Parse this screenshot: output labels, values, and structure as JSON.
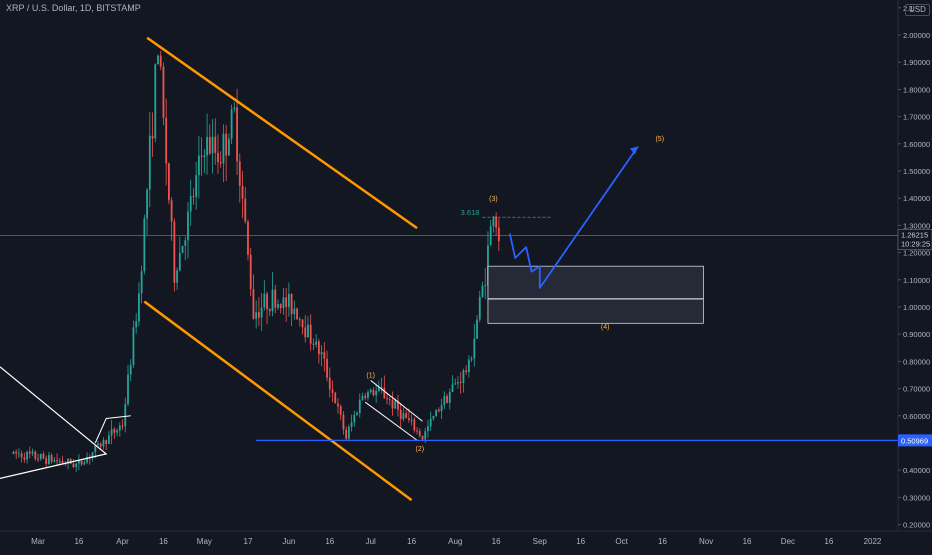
{
  "header": {
    "title": "XRP / U.S. Dollar, 1D, BITSTAMP",
    "currency": "USD"
  },
  "colors": {
    "background": "#131722",
    "up": "#26a69a",
    "down": "#ef5350",
    "channel": "#ff9800",
    "projection": "#2962ff",
    "support": "#2962ff",
    "triangle": "#ffffff",
    "wave_label": "#ffb74d",
    "fib": "#26a69a",
    "zone_fill": "#2a2e39",
    "price_line": "#787b86"
  },
  "chart_data": {
    "type": "candlestick",
    "x_tick_labels": [
      "Mar",
      "16",
      "Apr",
      "16",
      "May",
      "17",
      "Jun",
      "16",
      "Jul",
      "16",
      "Aug",
      "16",
      "Sep",
      "16",
      "Oct",
      "16",
      "Nov",
      "16",
      "Dec",
      "16",
      "2022"
    ],
    "y_tick_labels": [
      "2.1",
      "2.00000",
      "1.90000",
      "1.80000",
      "1.70000",
      "1.60000",
      "1.50000",
      "1.40000",
      "1.30000",
      "1.20000",
      "1.10000",
      "1.00000",
      "0.90000",
      "0.80000",
      "0.70000",
      "0.60000",
      "0.50000",
      "0.40000",
      "0.30000",
      "0.20000"
    ],
    "ylim": [
      0.17,
      2.1
    ],
    "last_price": "1.26215",
    "countdown": "10:29:25",
    "support_level": "0.50969",
    "fib_label": "3.618",
    "wave_labels": [
      "(1)",
      "(2)",
      "(3)",
      "(4)",
      "(5)"
    ],
    "key_points": [
      {
        "date": "2021-02-22",
        "price": 0.46
      },
      {
        "date": "2021-03-16",
        "price": 0.42
      },
      {
        "date": "2021-04-01",
        "price": 0.57
      },
      {
        "date": "2021-04-07",
        "price": 1.05
      },
      {
        "date": "2021-04-14",
        "price": 1.96
      },
      {
        "date": "2021-04-20",
        "price": 1.12
      },
      {
        "date": "2021-04-25",
        "price": 1.32
      },
      {
        "date": "2021-05-01",
        "price": 1.6
      },
      {
        "date": "2021-05-07",
        "price": 1.56
      },
      {
        "date": "2021-05-12",
        "price": 1.7
      },
      {
        "date": "2021-05-19",
        "price": 0.98
      },
      {
        "date": "2021-05-25",
        "price": 1.03
      },
      {
        "date": "2021-06-03",
        "price": 1.0
      },
      {
        "date": "2021-06-13",
        "price": 0.82
      },
      {
        "date": "2021-06-22",
        "price": 0.52
      },
      {
        "date": "2021-06-28",
        "price": 0.68
      },
      {
        "date": "2021-07-05",
        "price": 0.69
      },
      {
        "date": "2021-07-20",
        "price": 0.52
      },
      {
        "date": "2021-07-27",
        "price": 0.65
      },
      {
        "date": "2021-08-06",
        "price": 0.78
      },
      {
        "date": "2021-08-12",
        "price": 1.13
      },
      {
        "date": "2021-08-15",
        "price": 1.36
      },
      {
        "date": "2021-08-17",
        "price": 1.26
      }
    ]
  }
}
